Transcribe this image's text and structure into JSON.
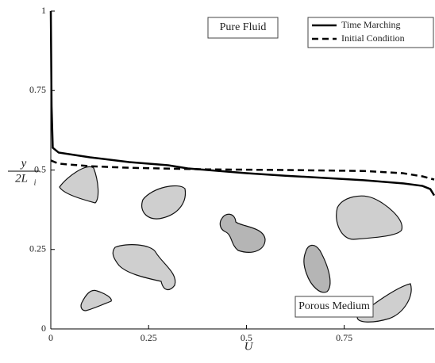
{
  "chart_data": {
    "type": "line",
    "x_label": "U",
    "y_label": {
      "numerator": "y",
      "denominator": "2L",
      "subscript": "i"
    },
    "annotations": [
      "Pure Fluid",
      "Porous Medium"
    ],
    "xlim": [
      0,
      0.98
    ],
    "ylim": [
      0,
      1
    ],
    "xticks": [
      0,
      0.25,
      0.5,
      0.75
    ],
    "yticks": [
      0,
      0.25,
      0.5,
      0.75,
      1
    ],
    "grid": false,
    "legend": "top-right",
    "series": [
      {
        "name": "Time Marching",
        "color": "#000000",
        "dash": "solid",
        "x": [
          0,
          0.002,
          0.005,
          0.02,
          0.1,
          0.2,
          0.3,
          0.35,
          0.4,
          0.5,
          0.6,
          0.7,
          0.8,
          0.9,
          0.95,
          0.97,
          0.98
        ],
        "values": [
          1,
          0.7,
          0.57,
          0.555,
          0.54,
          0.525,
          0.515,
          0.505,
          0.5,
          0.49,
          0.482,
          0.475,
          0.468,
          0.458,
          0.45,
          0.44,
          0.42
        ]
      },
      {
        "name": "Initial Condition",
        "color": "#000000",
        "dash": "dashed",
        "x": [
          0,
          0.02,
          0.1,
          0.2,
          0.4,
          0.6,
          0.8,
          0.9,
          0.95,
          0.98
        ],
        "values": [
          0.53,
          0.52,
          0.512,
          0.507,
          0.502,
          0.5,
          0.497,
          0.49,
          0.48,
          0.47
        ]
      }
    ]
  }
}
